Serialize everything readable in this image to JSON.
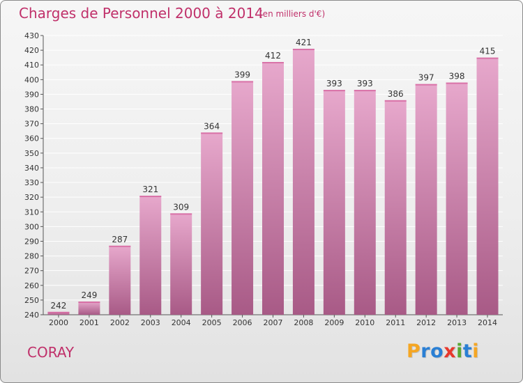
{
  "title": "Charges de Personnel 2000 à 2014",
  "subtitle": "(en milliers d'€)",
  "place": "CORAY",
  "logo": {
    "text": "Proxiti",
    "letters": [
      {
        "ch": "P",
        "color": "#f5a623"
      },
      {
        "ch": "r",
        "color": "#2a7fd4"
      },
      {
        "ch": "o",
        "color": "#2a7fd4"
      },
      {
        "ch": "x",
        "color": "#e8382c"
      },
      {
        "ch": "i",
        "color": "#5aa832"
      },
      {
        "ch": "t",
        "color": "#2a7fd4"
      },
      {
        "ch": "i",
        "color": "#f5a623"
      }
    ]
  },
  "colors": {
    "text": "#c0306a",
    "bar_top": "#e7a8cc",
    "bar_bottom": "#a85a86",
    "grid": "#ffffff",
    "axis": "#555555"
  },
  "chart_data": {
    "type": "bar",
    "title": "Charges de Personnel 2000 à 2014",
    "subtitle": "(en milliers d'€)",
    "categories": [
      "2000",
      "2001",
      "2002",
      "2003",
      "2004",
      "2005",
      "2006",
      "2007",
      "2008",
      "2009",
      "2010",
      "2011",
      "2012",
      "2013",
      "2014"
    ],
    "values": [
      242,
      249,
      287,
      321,
      309,
      364,
      399,
      412,
      421,
      393,
      393,
      386,
      397,
      398,
      415
    ],
    "ylim": [
      240,
      430
    ],
    "yticks": [
      240,
      250,
      260,
      270,
      280,
      290,
      300,
      310,
      320,
      330,
      340,
      350,
      360,
      370,
      380,
      390,
      400,
      410,
      420,
      430
    ],
    "grid": true,
    "data_labels": true,
    "xlabel": "",
    "ylabel": ""
  }
}
